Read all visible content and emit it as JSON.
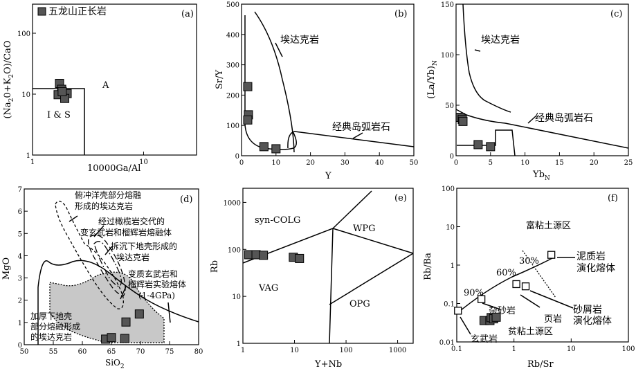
{
  "chart_data": [
    {
      "panel": "(a)",
      "type": "scatter",
      "xscale": "log",
      "yscale": "log",
      "xlim": [
        1,
        30
      ],
      "ylim": [
        1,
        300
      ],
      "xlabel": "10000Ga/Al",
      "ylabel_parts": [
        "(Na",
        "2",
        "0+K",
        "2",
        "O)/CaO"
      ],
      "xticks": [
        1,
        10
      ],
      "xticklabels": [
        "1",
        "10"
      ],
      "yticks": [
        1,
        10,
        100
      ],
      "yticklabels": [
        "1",
        "10",
        "100"
      ],
      "legend": "五龙山正长岩",
      "field_labels": [
        "I & S",
        "A"
      ],
      "x": [
        1.75,
        1.83,
        1.7,
        2.05,
        1.95,
        1.85
      ],
      "y": [
        15,
        12,
        9.8,
        10.2,
        8.5,
        11
      ]
    },
    {
      "panel": "(b)",
      "type": "scatter",
      "xlim": [
        0,
        50
      ],
      "ylim": [
        0,
        500
      ],
      "xlabel": "Y",
      "ylabel": "Sr/Y",
      "xticks": [
        0,
        10,
        20,
        30,
        40,
        50
      ],
      "yticks": [
        0,
        100,
        200,
        300,
        400,
        500
      ],
      "field_labels": [
        "埃达克岩",
        "经典岛弧岩石"
      ],
      "x": [
        1.8,
        2.0,
        1.8,
        6.5,
        10
      ],
      "y": [
        228,
        135,
        118,
        30,
        23
      ]
    },
    {
      "panel": "(c)",
      "type": "scatter",
      "xlim": [
        0,
        25
      ],
      "ylim": [
        0,
        150
      ],
      "xlabel": "Yb",
      "xlabel_sub": "N",
      "ylabel_parts": [
        "(La/Yb)",
        "N"
      ],
      "xticks": [
        0,
        5,
        10,
        15,
        20,
        25
      ],
      "yticks": [
        0,
        50,
        100,
        150
      ],
      "field_labels": [
        "埃达克岩",
        "经典岛弧岩石"
      ],
      "x": [
        0.6,
        0.9,
        1.0,
        3.2,
        5.0
      ],
      "y": [
        38,
        36,
        34,
        11,
        9
      ]
    },
    {
      "panel": "(d)",
      "type": "scatter",
      "xlim": [
        50,
        80
      ],
      "ylim": [
        0,
        7
      ],
      "xlabel": "SiO",
      "xlabel_sub": "2",
      "ylabel": "MgO",
      "xticks": [
        50,
        55,
        60,
        65,
        70,
        75,
        80
      ],
      "yticks": [
        0,
        1,
        2,
        3,
        4,
        5,
        6,
        7
      ],
      "field_labels": [
        "俯冲洋壳部分熔融",
        "形成的埃达克岩",
        "经过橄榄岩交代的",
        "变玄武岩和榴辉岩熔融体",
        "拆沉下地壳形成的",
        "埃达克岩",
        "变质玄武岩和",
        "榴辉岩实验熔体",
        "(1-4GPa)",
        "加厚下地壳",
        "部分熔融形成",
        "的埃达克岩"
      ],
      "x": [
        64.0,
        65.0,
        67.3,
        67.5,
        69.8
      ],
      "y": [
        0.25,
        0.32,
        0.28,
        1.02,
        1.38
      ]
    },
    {
      "panel": "(e)",
      "type": "scatter",
      "xscale": "log",
      "yscale": "log",
      "xlim": [
        1,
        2000
      ],
      "ylim": [
        1,
        2000
      ],
      "xlabel": "Y+Nb",
      "ylabel": "Rb",
      "xticks": [
        1,
        10,
        100,
        1000
      ],
      "yticks": [
        1,
        10,
        100,
        1000
      ],
      "field_labels": [
        "syn-COLG",
        "WPG",
        "VAG",
        "OPG"
      ],
      "x": [
        1.3,
        1.8,
        2.5,
        9.5,
        12.5
      ],
      "y": [
        77,
        77,
        75,
        68,
        64
      ]
    },
    {
      "panel": "(f)",
      "type": "scatter",
      "xscale": "log",
      "yscale": "log",
      "xlim": [
        0.1,
        100
      ],
      "ylim": [
        0.01,
        100
      ],
      "xlabel": "Rb/Sr",
      "ylabel": "Rb/Ba",
      "xticks": [
        0.1,
        1,
        10,
        100
      ],
      "xticklabels": [
        "0.1",
        "1",
        "10",
        "100"
      ],
      "yticks": [
        0.01,
        0.1,
        1,
        10,
        100
      ],
      "yticklabels": [
        "0.01",
        "0.1",
        "1",
        "10",
        "100"
      ],
      "field_labels": [
        "富粘土源区",
        "贫粘土源区",
        "泥质岩",
        "演化熔体",
        "砂屑岩",
        "演化熔体",
        "杂砂岩",
        "页岩",
        "玄武岩"
      ],
      "percent_labels": [
        "30%",
        "60%",
        "90%"
      ],
      "x": [
        0.3,
        0.38,
        0.4,
        0.44,
        0.49
      ],
      "y": [
        0.036,
        0.036,
        0.043,
        0.04,
        0.044
      ],
      "reference_points": {
        "x": [
          0.105,
          0.27,
          1.1,
          1.6,
          4.5
        ],
        "y": [
          0.065,
          0.13,
          0.32,
          0.28,
          1.85
        ]
      }
    }
  ]
}
